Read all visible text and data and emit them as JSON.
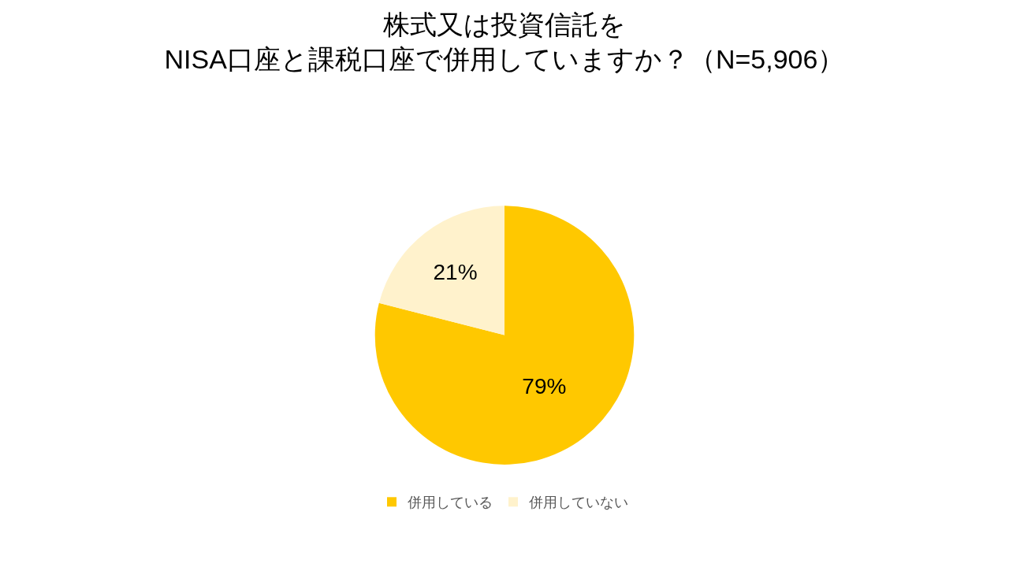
{
  "chart_data": {
    "type": "pie",
    "title": "株式又は投資信託を\nNISA口座と課税口座で併用していますか？（N=5,906）",
    "categories": [
      "併用している",
      "併用していない"
    ],
    "values": [
      79,
      21
    ],
    "value_labels": [
      "79%",
      "21%"
    ],
    "colors": [
      "#ffc800",
      "#fff2cc"
    ],
    "legend": "bottom"
  }
}
